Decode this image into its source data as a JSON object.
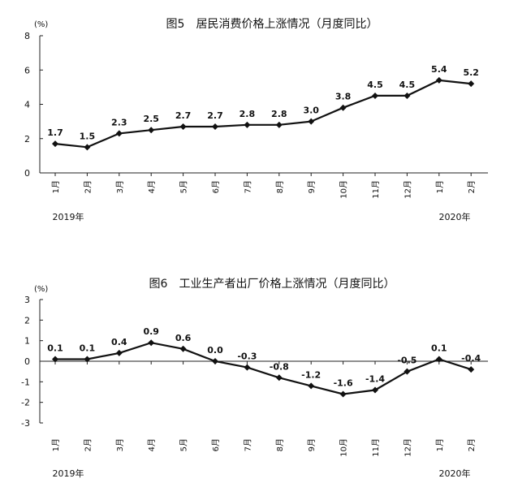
{
  "chart_data": [
    {
      "type": "line",
      "title": "图5　居民消费价格上涨情况（月度同比）",
      "unit": "(%)",
      "categories": [
        "1月",
        "2月",
        "3月",
        "4月",
        "5月",
        "6月",
        "7月",
        "8月",
        "9月",
        "10月",
        "11月",
        "12月",
        "1月",
        "2月"
      ],
      "year_labels": [
        "2019年",
        "2020年"
      ],
      "values": [
        1.7,
        1.5,
        2.3,
        2.5,
        2.7,
        2.7,
        2.8,
        2.8,
        3.0,
        3.8,
        4.5,
        4.5,
        5.4,
        5.2
      ],
      "value_labels": [
        "1.7",
        "1.5",
        "2.3",
        "2.5",
        "2.7",
        "2.7",
        "2.8",
        "2.8",
        "3.0",
        "3.8",
        "4.5",
        "4.5",
        "5.4",
        "5.2"
      ],
      "ylim": [
        0,
        8
      ],
      "yticks": [
        0,
        2,
        4,
        6,
        8
      ],
      "grid": false,
      "color": "#111111"
    },
    {
      "type": "line",
      "title": "图6　工业生产者出厂价格上涨情况（月度同比）",
      "unit": "(%)",
      "categories": [
        "1月",
        "2月",
        "3月",
        "4月",
        "5月",
        "6月",
        "7月",
        "8月",
        "9月",
        "10月",
        "11月",
        "12月",
        "1月",
        "2月"
      ],
      "year_labels": [
        "2019年",
        "2020年"
      ],
      "values": [
        0.1,
        0.1,
        0.4,
        0.9,
        0.6,
        0.0,
        -0.3,
        -0.8,
        -1.2,
        -1.6,
        -1.4,
        -0.5,
        0.1,
        -0.4
      ],
      "value_labels": [
        "0.1",
        "0.1",
        "0.4",
        "0.9",
        "0.6",
        "0.0",
        "-0.3",
        "-0.8",
        "-1.2",
        "-1.6",
        "-1.4",
        "-0.5",
        "0.1",
        "-0.4"
      ],
      "ylim": [
        -3,
        3
      ],
      "yticks": [
        -3,
        -2,
        -1,
        0,
        1,
        2,
        3
      ],
      "grid": false,
      "color": "#111111"
    }
  ]
}
